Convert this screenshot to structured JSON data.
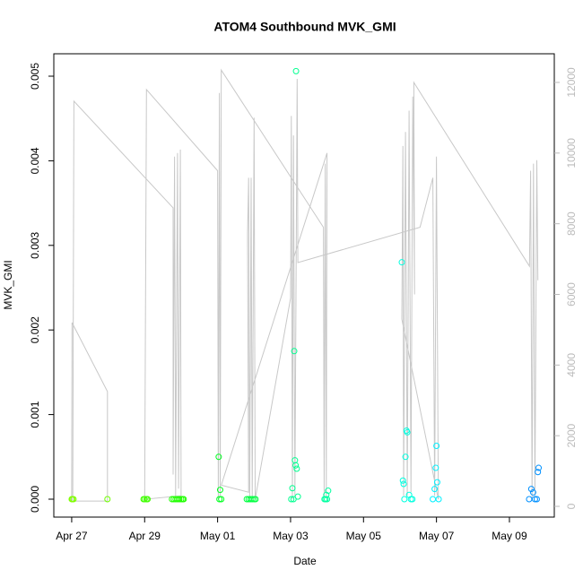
{
  "chart_data": {
    "type": "scatter",
    "title": "ATOM4 Southbound MVK_GMI",
    "x_label": "Date",
    "y_label": "MVK_GMI",
    "xlim": [
      -0.49,
      13.23
    ],
    "xticks": [
      {
        "value": 0,
        "label": "Apr 27"
      },
      {
        "value": 2,
        "label": "Apr 29"
      },
      {
        "value": 4,
        "label": "May 01"
      },
      {
        "value": 6,
        "label": "May 03"
      },
      {
        "value": 8,
        "label": "May 05"
      },
      {
        "value": 10,
        "label": "May 07"
      },
      {
        "value": 12,
        "label": "May 09"
      }
    ],
    "ylim": [
      -0.000212,
      0.005265
    ],
    "yticks": [
      {
        "value": 0,
        "label": "0.000"
      },
      {
        "value": 0.001,
        "label": "0.001"
      },
      {
        "value": 0.002,
        "label": "0.002"
      },
      {
        "value": 0.003,
        "label": "0.003"
      },
      {
        "value": 0.004,
        "label": "0.004"
      },
      {
        "value": 0.005,
        "label": "0.005"
      }
    ],
    "y2lim": [
      -304,
      12811
    ],
    "y2ticks": [
      0,
      2000,
      4000,
      6000,
      8000,
      10000,
      12000
    ],
    "line": {
      "color": "#c8c8c8",
      "axis": "y2",
      "x": [
        0,
        0.01,
        0.98,
        0.98,
        0.03,
        0.06,
        2.78,
        2.78,
        2.82,
        2.85,
        2.9,
        2.93,
        2.98,
        3.0,
        2.0,
        2.05,
        4.0,
        4.02,
        4.05,
        4.07,
        4.1,
        6.9,
        6.92,
        6.95,
        6.98,
        7.0,
        4.1,
        4.85,
        4.82,
        4.85,
        4.88,
        4.92,
        4.95,
        5.0,
        5.03,
        6.0,
        6.02,
        6.05,
        6.08,
        6.12,
        6.18,
        6.2,
        9.55,
        9.9,
        9.95,
        10.0,
        10.05,
        9.05,
        9.08,
        9.1,
        9.15,
        9.2,
        9.25,
        9.3,
        9.35,
        9.4,
        9.38,
        12.55,
        12.58,
        12.62,
        12.66,
        12.7,
        12.75,
        12.78
      ],
      "values": [
        150,
        5200,
        3250,
        150,
        150,
        11470,
        8450,
        900,
        9900,
        300,
        10000,
        500,
        10100,
        300,
        200,
        11800,
        9500,
        200,
        11700,
        300,
        12350,
        7900,
        300,
        9700,
        300,
        10000,
        600,
        400,
        7700,
        9300,
        200,
        9300,
        200,
        11000,
        200,
        5900,
        11050,
        200,
        10500,
        300,
        12100,
        6900,
        7900,
        9300,
        300,
        9900,
        200,
        5300,
        10200,
        300,
        10600,
        300,
        11200,
        400,
        11600,
        6000,
        12000,
        6800,
        9500,
        200,
        9700,
        300,
        9800,
        6400
      ]
    },
    "series": [
      {
        "color": "#80ff00",
        "x": [
          0,
          0.02,
          0.05
        ],
        "values": [
          0,
          0,
          0
        ]
      },
      {
        "color": "#70ff00",
        "x": [
          0.98
        ],
        "values": [
          0
        ]
      },
      {
        "color": "#40ff00",
        "x": [
          1.97,
          2.0,
          2.05,
          2.08
        ],
        "values": [
          0,
          0,
          0,
          0
        ]
      },
      {
        "color": "#20ff00",
        "x": [
          2.75,
          2.8,
          2.85,
          2.9,
          2.95,
          3.0,
          3.04,
          3.07
        ],
        "values": [
          0,
          0,
          0,
          0,
          0,
          0,
          0,
          0
        ]
      },
      {
        "color": "#00ff20",
        "x": [
          4.03,
          4.07,
          4.1,
          4.05
        ],
        "values": [
          0.0005,
          0.00011,
          0,
          0
        ]
      },
      {
        "color": "#00ff40",
        "x": [
          4.8,
          4.85,
          4.9,
          4.95,
          5.0,
          5.04
        ],
        "values": [
          0,
          0,
          0,
          0,
          0,
          0
        ]
      },
      {
        "color": "#00ff90",
        "x": [
          6.15,
          6.1,
          6.12,
          6.14,
          6.17,
          6.05,
          6.2,
          6.02,
          6.08
        ],
        "values": [
          0.00506,
          0.00175,
          0.00046,
          0.0004,
          0.00036,
          0.00013,
          3e-05,
          0,
          0
        ]
      },
      {
        "color": "#00ffa0",
        "x": [
          7.03,
          6.98,
          6.93,
          6.96,
          7.0
        ],
        "values": [
          0.0001,
          5e-05,
          0,
          0,
          0
        ]
      },
      {
        "color": "#00ffe0",
        "x": [
          9.05,
          9.18,
          9.2,
          9.15,
          9.08,
          9.1,
          9.25,
          9.3,
          9.12,
          9.34
        ],
        "values": [
          0.0028,
          0.00081,
          0.00079,
          0.0005,
          0.00022,
          0.00018,
          5e-05,
          0,
          0,
          0
        ]
      },
      {
        "color": "#00f0ff",
        "x": [
          10.0,
          9.98,
          10.02,
          9.95,
          9.9,
          10.06
        ],
        "values": [
          0.00063,
          0.00037,
          0.0002,
          0.00012,
          0,
          0
        ]
      },
      {
        "color": "#0090ff",
        "x": [
          12.8,
          12.78,
          12.6,
          12.65,
          12.54,
          12.7,
          12.75
        ],
        "values": [
          0.00037,
          0.00032,
          0.00012,
          8e-05,
          0,
          0,
          0
        ]
      }
    ]
  }
}
